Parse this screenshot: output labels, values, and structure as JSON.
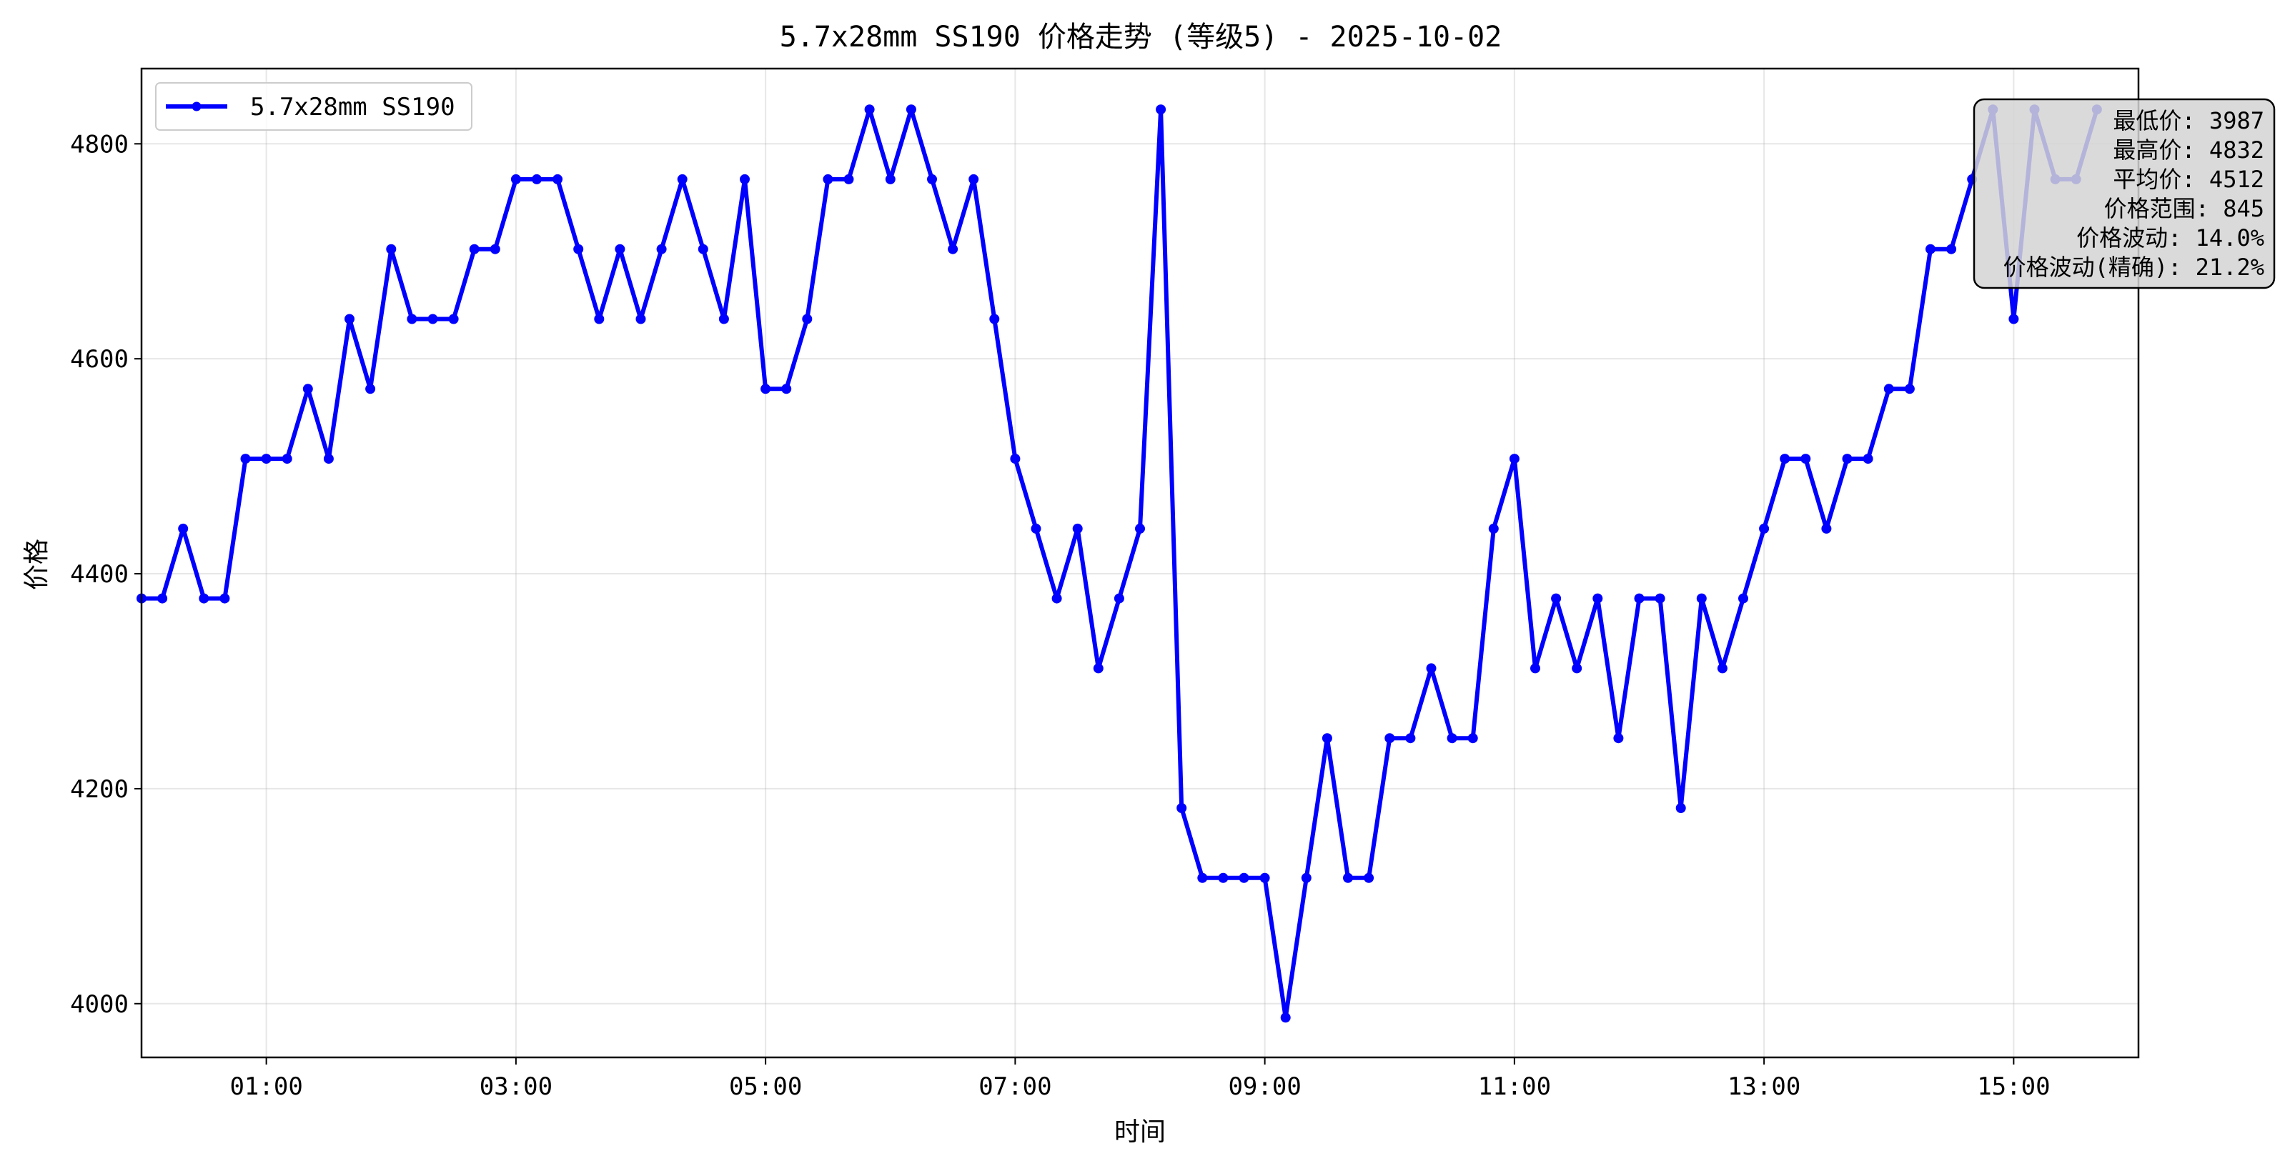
{
  "chart_data": {
    "type": "line",
    "title": "5.7x28mm SS190 价格走势 (等级5) - 2025-10-02",
    "xlabel": "时间",
    "ylabel": "价格",
    "xlim": [
      "2025-10-02 00:00",
      "2025-10-02 16:00"
    ],
    "ylim": [
      3950,
      4870
    ],
    "x_ticks": [
      "01:00",
      "03:00",
      "05:00",
      "07:00",
      "09:00",
      "11:00",
      "13:00",
      "15:00"
    ],
    "y_ticks": [
      4000,
      4200,
      4400,
      4600,
      4800
    ],
    "grid": true,
    "legend_position": "top-left",
    "series": [
      {
        "name": "5.7x28mm SS190",
        "color": "#0000ff",
        "x": [
          "00:00",
          "00:10",
          "00:20",
          "00:30",
          "00:40",
          "00:50",
          "01:00",
          "01:10",
          "01:20",
          "01:30",
          "01:40",
          "01:50",
          "02:00",
          "02:10",
          "02:20",
          "02:30",
          "02:40",
          "02:50",
          "03:00",
          "03:10",
          "03:20",
          "03:30",
          "03:40",
          "03:50",
          "04:00",
          "04:10",
          "04:20",
          "04:30",
          "04:40",
          "04:50",
          "05:00",
          "05:10",
          "05:20",
          "05:30",
          "05:40",
          "05:50",
          "06:00",
          "06:10",
          "06:20",
          "06:30",
          "06:40",
          "06:50",
          "07:00",
          "07:10",
          "07:20",
          "07:30",
          "07:40",
          "07:50",
          "08:00",
          "08:10",
          "08:20",
          "08:30",
          "08:40",
          "08:50",
          "09:00",
          "09:10",
          "09:20",
          "09:30",
          "09:40",
          "09:50",
          "10:00",
          "10:10",
          "10:20",
          "10:30",
          "10:40",
          "10:50",
          "11:00",
          "11:10",
          "11:20",
          "11:30",
          "11:40",
          "11:50",
          "12:00",
          "12:10",
          "12:20",
          "12:30",
          "12:40",
          "12:50",
          "13:00",
          "13:10",
          "13:20",
          "13:30",
          "13:40",
          "13:50",
          "14:00",
          "14:10",
          "14:20",
          "14:30",
          "14:40",
          "14:50",
          "15:00",
          "15:10",
          "15:20",
          "15:30",
          "15:40"
        ],
        "y": [
          4377,
          4377,
          4442,
          4377,
          4377,
          4507,
          4507,
          4507,
          4572,
          4507,
          4637,
          4572,
          4702,
          4637,
          4637,
          4637,
          4702,
          4702,
          4767,
          4767,
          4767,
          4702,
          4637,
          4702,
          4637,
          4702,
          4767,
          4702,
          4637,
          4767,
          4572,
          4572,
          4637,
          4767,
          4767,
          4832,
          4767,
          4832,
          4767,
          4702,
          4767,
          4637,
          4507,
          4442,
          4377,
          4442,
          4312,
          4377,
          4442,
          4832,
          4182,
          4117,
          4117,
          4117,
          4117,
          3987,
          4117,
          4247,
          4117,
          4117,
          4247,
          4247,
          4312,
          4247,
          4247,
          4442,
          4507,
          4312,
          4377,
          4312,
          4377,
          4247,
          4377,
          4377,
          4182,
          4377,
          4312,
          4377,
          4442,
          4507,
          4507,
          4442,
          4507,
          4507,
          4572,
          4572,
          4702,
          4702,
          4767,
          4832,
          4637,
          4832,
          4767,
          4767,
          4832
        ]
      }
    ]
  },
  "stats_box": {
    "lines": [
      "最低价: 3987",
      "最高价: 4832",
      "平均价: 4512",
      "价格范围: 845",
      "价格波动: 14.0%",
      "价格波动(精确): 21.2%"
    ]
  }
}
